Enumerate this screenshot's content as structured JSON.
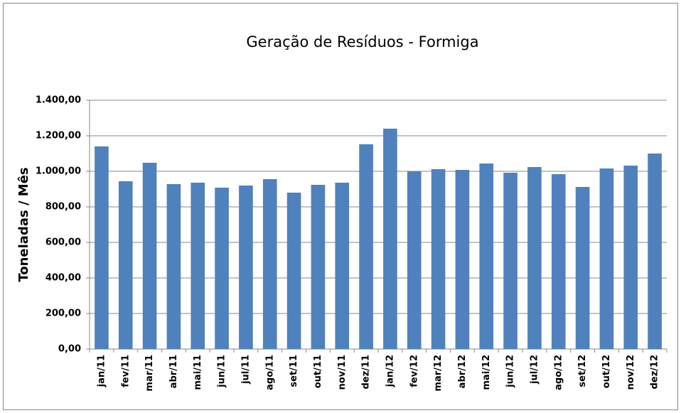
{
  "chart_data": {
    "type": "bar",
    "title": "Geração de Resíduos - Formiga",
    "y_label": "Toneladas / Mês",
    "categories": [
      "jan/11",
      "fev/11",
      "mar/11",
      "abr/11",
      "mai/11",
      "jun/11",
      "jul/11",
      "ago/11",
      "set/11",
      "out/11",
      "nov/11",
      "dez/11",
      "jan/12",
      "fev/12",
      "mar/12",
      "abr/12",
      "mai/12",
      "jun/12",
      "jul/12",
      "ago/12",
      "set/12",
      "out/12",
      "nov/12",
      "dez/12"
    ],
    "values": [
      1140,
      944,
      1048,
      928,
      936,
      908,
      920,
      956,
      880,
      924,
      936,
      1152,
      1240,
      1000,
      1012,
      1008,
      1044,
      992,
      1024,
      984,
      912,
      1016,
      1032,
      1100
    ],
    "color": "#4f81bd",
    "ylim": [
      0,
      1400
    ],
    "yticks": [
      {
        "value": 0,
        "label": "0,00"
      },
      {
        "value": 200,
        "label": "200,00"
      },
      {
        "value": 400,
        "label": "400,00"
      },
      {
        "value": 600,
        "label": "600,00"
      },
      {
        "value": 800,
        "label": "800,00"
      },
      {
        "value": 1000,
        "label": "1.000,00"
      },
      {
        "value": 1200,
        "label": "1.200,00"
      },
      {
        "value": 1400,
        "label": "1.400,00"
      }
    ],
    "grid": true
  }
}
